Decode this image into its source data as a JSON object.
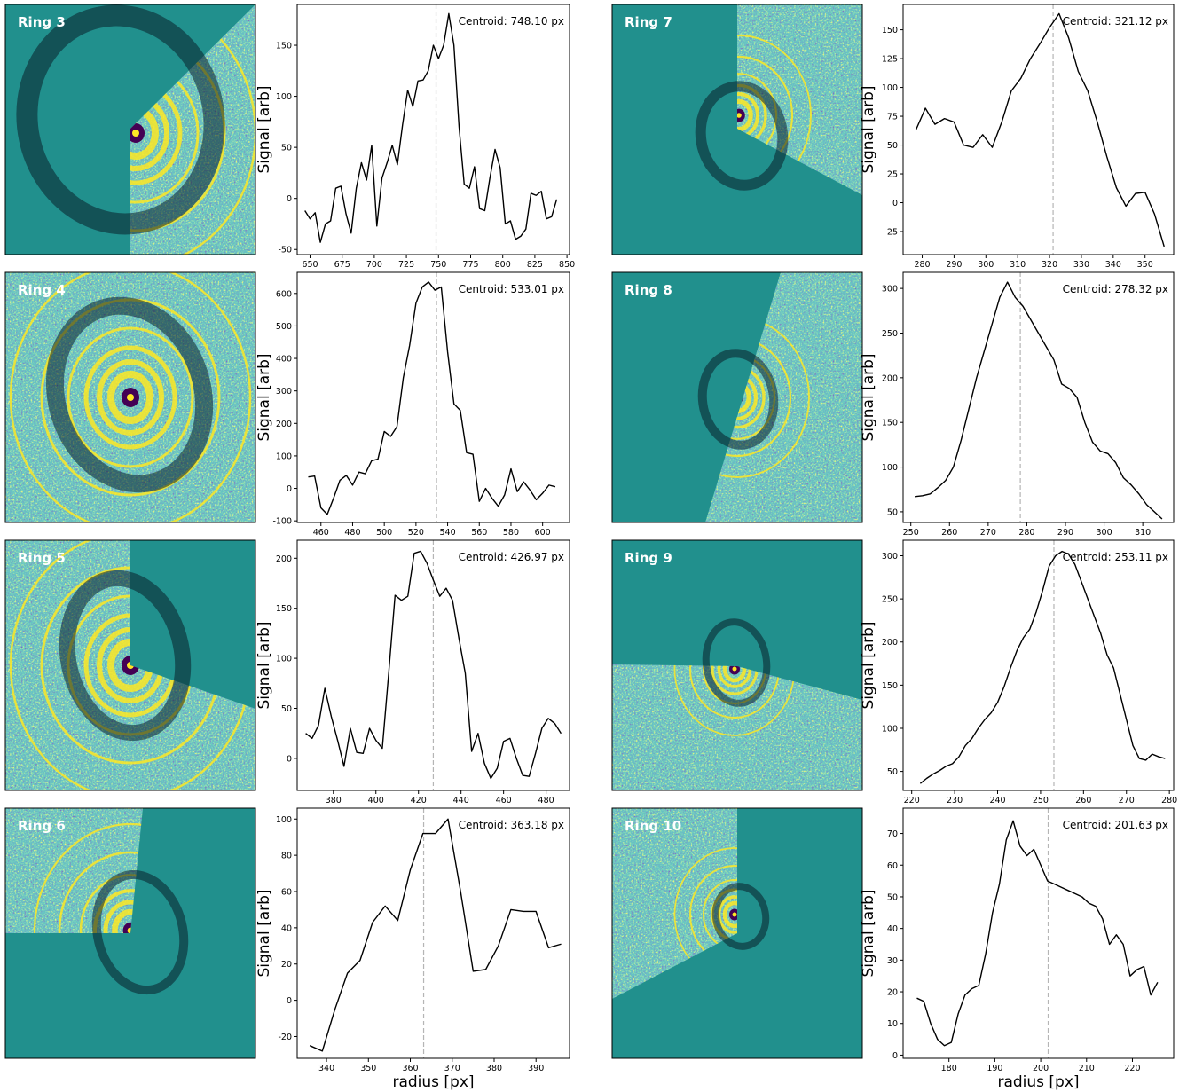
{
  "images": [
    {
      "label": "Ring 3"
    },
    {
      "label": "Ring 7"
    },
    {
      "label": "Ring 4"
    },
    {
      "label": "Ring 8"
    },
    {
      "label": "Ring 5"
    },
    {
      "label": "Ring 9"
    },
    {
      "label": "Ring 6"
    },
    {
      "label": "Ring 10"
    }
  ],
  "chart_data": [
    {
      "type": "line",
      "color": "#000000",
      "ylabel": "Signal [arb]",
      "annotation": "Centroid: 748.10 px",
      "centroid": 748.1,
      "x": [
        646,
        650,
        654,
        658,
        662,
        666,
        670,
        674,
        678,
        682,
        686,
        690,
        694,
        698,
        702,
        706,
        710,
        714,
        718,
        722,
        726,
        730,
        734,
        738,
        742,
        746,
        750,
        754,
        758,
        762,
        766,
        770,
        774,
        778,
        782,
        786,
        790,
        794,
        798,
        802,
        806,
        810,
        814,
        818,
        822,
        826,
        830,
        834,
        838,
        842
      ],
      "values": [
        -12,
        -20,
        -14,
        -43,
        -25,
        -22,
        10,
        12,
        -15,
        -34,
        10,
        35,
        18,
        52,
        -27,
        20,
        35,
        52,
        33,
        72,
        106,
        90,
        115,
        116,
        125,
        150,
        137,
        150,
        181,
        150,
        70,
        14,
        10,
        31,
        -10,
        -12,
        20,
        48,
        30,
        -25,
        -22,
        -40,
        -37,
        -30,
        5,
        3,
        7,
        -20,
        -18,
        -1
      ],
      "xlim": [
        640,
        852
      ],
      "ylim": [
        -55,
        190
      ],
      "xticks": [
        650,
        675,
        700,
        725,
        750,
        775,
        800,
        825,
        850
      ],
      "yticks": [
        -50,
        0,
        50,
        100,
        150
      ]
    },
    {
      "type": "line",
      "color": "#000000",
      "ylabel": "Signal [arb]",
      "annotation": "Centroid: 321.12 px",
      "centroid": 321.12,
      "x": [
        278,
        281,
        284,
        287,
        290,
        293,
        296,
        299,
        302,
        305,
        308,
        311,
        314,
        317,
        320,
        323,
        326,
        329,
        332,
        335,
        338,
        341,
        344,
        347,
        350,
        353,
        356
      ],
      "values": [
        63,
        82,
        68,
        73,
        70,
        50,
        48,
        59,
        48,
        70,
        97,
        108,
        125,
        138,
        152,
        164,
        143,
        114,
        97,
        70,
        40,
        13,
        -3,
        8,
        9,
        -10,
        -38
      ],
      "xlim": [
        274,
        359
      ],
      "ylim": [
        -45,
        172
      ],
      "xticks": [
        280,
        290,
        300,
        310,
        320,
        330,
        340,
        350
      ],
      "yticks": [
        -25,
        0,
        25,
        50,
        75,
        100,
        125,
        150
      ]
    },
    {
      "type": "line",
      "color": "#000000",
      "ylabel": "Signal [arb]",
      "annotation": "Centroid: 533.01 px",
      "centroid": 533.01,
      "x": [
        452,
        456,
        460,
        464,
        468,
        472,
        476,
        480,
        484,
        488,
        492,
        496,
        500,
        504,
        508,
        512,
        516,
        520,
        524,
        528,
        532,
        536,
        540,
        544,
        548,
        552,
        556,
        560,
        564,
        568,
        572,
        576,
        580,
        584,
        588,
        592,
        596,
        600,
        604,
        608
      ],
      "values": [
        35,
        38,
        -60,
        -80,
        -30,
        25,
        40,
        10,
        50,
        45,
        85,
        90,
        175,
        160,
        190,
        340,
        440,
        570,
        620,
        635,
        610,
        620,
        420,
        260,
        240,
        110,
        105,
        -40,
        0,
        -30,
        -55,
        -20,
        60,
        -10,
        20,
        -5,
        -35,
        -15,
        10,
        5
      ],
      "xlim": [
        445,
        617
      ],
      "ylim": [
        -105,
        665
      ],
      "xticks": [
        460,
        480,
        500,
        520,
        540,
        560,
        580,
        600
      ],
      "yticks": [
        -100,
        0,
        100,
        200,
        300,
        400,
        500,
        600
      ]
    },
    {
      "type": "line",
      "color": "#000000",
      "ylabel": "Signal [arb]",
      "annotation": "Centroid: 278.32 px",
      "centroid": 278.32,
      "x": [
        251,
        253,
        255,
        257,
        259,
        261,
        263,
        265,
        267,
        269,
        271,
        273,
        275,
        277,
        279,
        281,
        283,
        285,
        287,
        289,
        291,
        293,
        295,
        297,
        299,
        301,
        303,
        305,
        307,
        309,
        311,
        313,
        315
      ],
      "values": [
        67,
        68,
        70,
        77,
        85,
        100,
        130,
        165,
        200,
        230,
        260,
        290,
        307,
        290,
        280,
        265,
        250,
        235,
        220,
        193,
        188,
        178,
        150,
        128,
        118,
        115,
        105,
        88,
        80,
        70,
        58,
        50,
        42
      ],
      "xlim": [
        248,
        318
      ],
      "ylim": [
        38,
        318
      ],
      "xticks": [
        250,
        260,
        270,
        280,
        290,
        300,
        310
      ],
      "yticks": [
        50,
        100,
        150,
        200,
        250,
        300
      ]
    },
    {
      "type": "line",
      "color": "#000000",
      "ylabel": "Signal [arb]",
      "annotation": "Centroid: 426.97 px",
      "centroid": 426.97,
      "x": [
        367,
        370,
        373,
        376,
        379,
        382,
        385,
        388,
        391,
        394,
        397,
        400,
        403,
        406,
        409,
        412,
        415,
        418,
        421,
        424,
        427,
        430,
        433,
        436,
        439,
        442,
        445,
        448,
        451,
        454,
        457,
        460,
        463,
        466,
        469,
        472,
        475,
        478,
        481,
        484,
        487
      ],
      "values": [
        25,
        20,
        33,
        70,
        42,
        18,
        -8,
        30,
        6,
        5,
        30,
        18,
        10,
        85,
        163,
        158,
        162,
        205,
        207,
        195,
        178,
        162,
        170,
        158,
        120,
        85,
        7,
        25,
        -5,
        -20,
        -10,
        17,
        20,
        0,
        -17,
        -18,
        5,
        30,
        40,
        35,
        25
      ],
      "xlim": [
        363,
        491
      ],
      "ylim": [
        -32,
        218
      ],
      "xticks": [
        380,
        400,
        420,
        440,
        460,
        480
      ],
      "yticks": [
        0,
        50,
        100,
        150,
        200
      ]
    },
    {
      "type": "line",
      "color": "#000000",
      "ylabel": "Signal [arb]",
      "annotation": "Centroid: 253.11 px",
      "centroid": 253.11,
      "x": [
        222,
        223.5,
        225,
        226.5,
        228,
        229.5,
        231,
        232.5,
        234,
        235.5,
        237,
        238.5,
        240,
        241.5,
        243,
        244.5,
        246,
        247.5,
        249,
        250.5,
        252,
        253.5,
        255,
        256.5,
        258,
        259.5,
        261,
        262.5,
        264,
        265.5,
        267,
        268.5,
        270,
        271.5,
        273,
        274.5,
        276,
        277.5,
        279
      ],
      "values": [
        36,
        42,
        47,
        51,
        56,
        59,
        67,
        80,
        88,
        100,
        110,
        118,
        130,
        148,
        170,
        190,
        205,
        215,
        235,
        260,
        288,
        300,
        305,
        302,
        290,
        270,
        250,
        230,
        210,
        185,
        170,
        140,
        110,
        80,
        65,
        63,
        70,
        67,
        65
      ],
      "xlim": [
        218,
        281
      ],
      "ylim": [
        28,
        318
      ],
      "xticks": [
        220,
        230,
        240,
        250,
        260,
        270,
        280
      ],
      "yticks": [
        50,
        100,
        150,
        200,
        250,
        300
      ]
    },
    {
      "type": "line",
      "color": "#000000",
      "ylabel": "Signal [arb]",
      "xlabel": "radius [px]",
      "annotation": "Centroid: 363.18 px",
      "centroid": 363.18,
      "x": [
        336,
        339,
        342,
        345,
        348,
        351,
        354,
        357,
        360,
        363,
        366,
        369,
        372,
        375,
        378,
        381,
        384,
        387,
        390,
        393,
        396
      ],
      "values": [
        -25,
        -28,
        -5,
        15,
        22,
        43,
        52,
        44,
        72,
        92,
        92,
        100,
        60,
        16,
        17,
        30,
        50,
        49,
        49,
        29,
        31
      ],
      "xlim": [
        333,
        398
      ],
      "ylim": [
        -32,
        106
      ],
      "xticks": [
        340,
        350,
        360,
        370,
        380,
        390
      ],
      "yticks": [
        -20,
        0,
        20,
        40,
        60,
        80,
        100
      ]
    },
    {
      "type": "line",
      "color": "#000000",
      "ylabel": "Signal [arb]",
      "xlabel": "radius [px]",
      "annotation": "Centroid: 201.63 px",
      "centroid": 201.63,
      "x": [
        173,
        174.5,
        176,
        177.5,
        179,
        180.5,
        182,
        183.5,
        185,
        186.5,
        188,
        189.5,
        191,
        192.5,
        194,
        195.5,
        197,
        198.5,
        200,
        201.5,
        203,
        204.5,
        206,
        207.5,
        209,
        210.5,
        212,
        213.5,
        215,
        216.5,
        218,
        219.5,
        221,
        222.5,
        224,
        225.5
      ],
      "values": [
        18,
        17,
        10,
        5,
        3,
        4,
        13,
        19,
        21,
        22,
        32,
        45,
        54,
        68,
        74,
        66,
        63,
        65,
        60,
        55,
        54,
        53,
        52,
        51,
        50,
        48,
        47,
        43,
        35,
        38,
        35,
        25,
        27,
        28,
        19,
        23
      ],
      "xlim": [
        170,
        229
      ],
      "ylim": [
        -1,
        78
      ],
      "xticks": [
        180,
        190,
        200,
        210,
        220
      ],
      "yticks": [
        0,
        10,
        20,
        30,
        40,
        50,
        60,
        70
      ]
    }
  ]
}
